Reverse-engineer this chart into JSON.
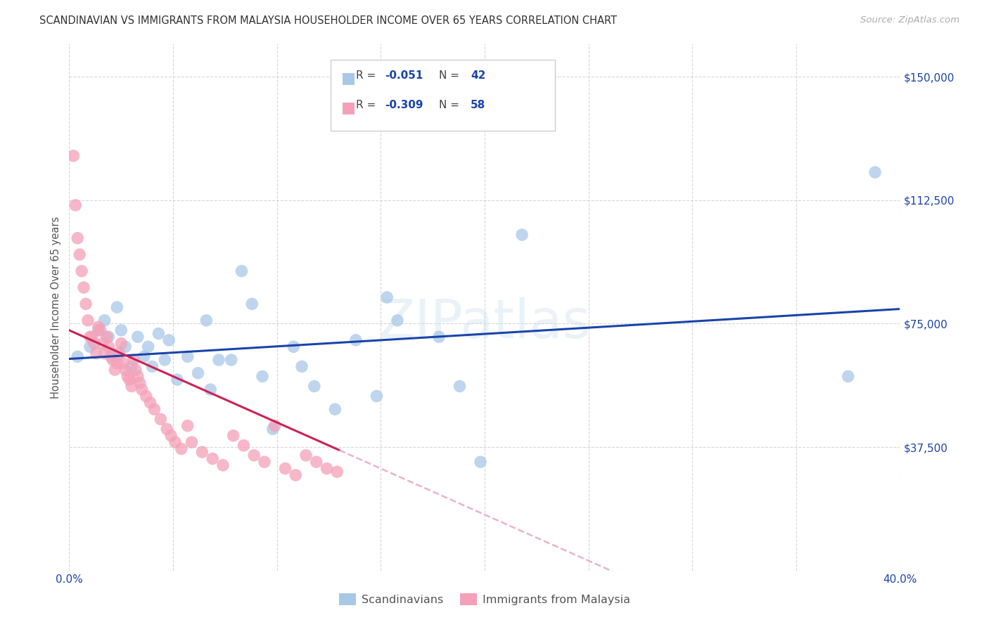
{
  "title": "SCANDINAVIAN VS IMMIGRANTS FROM MALAYSIA HOUSEHOLDER INCOME OVER 65 YEARS CORRELATION CHART",
  "source": "Source: ZipAtlas.com",
  "ylabel": "Householder Income Over 65 years",
  "watermark": "ZIPatlas",
  "xlim": [
    0.0,
    0.4
  ],
  "ylim": [
    0,
    160000
  ],
  "yticks": [
    0,
    37500,
    75000,
    112500,
    150000
  ],
  "xticks": [
    0.0,
    0.05,
    0.1,
    0.15,
    0.2,
    0.25,
    0.3,
    0.35,
    0.4
  ],
  "color_blue": "#a8c8e8",
  "color_pink": "#f4a0b8",
  "trendline_blue": "#1a44aa",
  "trendline_pink": "#cc2255",
  "trendline_pink_dash_color": "#e8a0b8",
  "scandinavians_x": [
    0.004,
    0.01,
    0.014,
    0.017,
    0.019,
    0.021,
    0.023,
    0.025,
    0.027,
    0.03,
    0.033,
    0.036,
    0.038,
    0.04,
    0.043,
    0.046,
    0.048,
    0.052,
    0.057,
    0.062,
    0.066,
    0.068,
    0.072,
    0.078,
    0.083,
    0.088,
    0.093,
    0.098,
    0.108,
    0.112,
    0.118,
    0.128,
    0.138,
    0.148,
    0.153,
    0.158,
    0.178,
    0.188,
    0.198,
    0.218,
    0.375,
    0.388
  ],
  "scandinavians_y": [
    65000,
    68000,
    73000,
    76000,
    71000,
    66000,
    80000,
    73000,
    68000,
    62000,
    71000,
    65000,
    68000,
    62000,
    72000,
    64000,
    70000,
    58000,
    65000,
    60000,
    76000,
    55000,
    64000,
    64000,
    91000,
    81000,
    59000,
    43000,
    68000,
    62000,
    56000,
    49000,
    70000,
    53000,
    83000,
    76000,
    71000,
    56000,
    33000,
    102000,
    59000,
    121000
  ],
  "malaysia_x": [
    0.002,
    0.003,
    0.004,
    0.005,
    0.006,
    0.007,
    0.008,
    0.009,
    0.01,
    0.011,
    0.012,
    0.013,
    0.014,
    0.015,
    0.016,
    0.017,
    0.018,
    0.019,
    0.02,
    0.021,
    0.022,
    0.023,
    0.024,
    0.025,
    0.026,
    0.027,
    0.028,
    0.029,
    0.03,
    0.031,
    0.032,
    0.033,
    0.034,
    0.035,
    0.037,
    0.039,
    0.041,
    0.044,
    0.047,
    0.049,
    0.051,
    0.054,
    0.057,
    0.059,
    0.064,
    0.069,
    0.074,
    0.079,
    0.084,
    0.089,
    0.094,
    0.099,
    0.104,
    0.109,
    0.114,
    0.119,
    0.124,
    0.129
  ],
  "malaysia_y": [
    126000,
    111000,
    101000,
    96000,
    91000,
    86000,
    81000,
    76000,
    71000,
    71000,
    69000,
    66000,
    74000,
    73000,
    69000,
    66000,
    71000,
    68000,
    65000,
    64000,
    61000,
    63000,
    66000,
    69000,
    63000,
    61000,
    59000,
    58000,
    56000,
    64000,
    61000,
    59000,
    57000,
    55000,
    53000,
    51000,
    49000,
    46000,
    43000,
    41000,
    39000,
    37000,
    44000,
    39000,
    36000,
    34000,
    32000,
    41000,
    38000,
    35000,
    33000,
    44000,
    31000,
    29000,
    35000,
    33000,
    31000,
    30000
  ]
}
